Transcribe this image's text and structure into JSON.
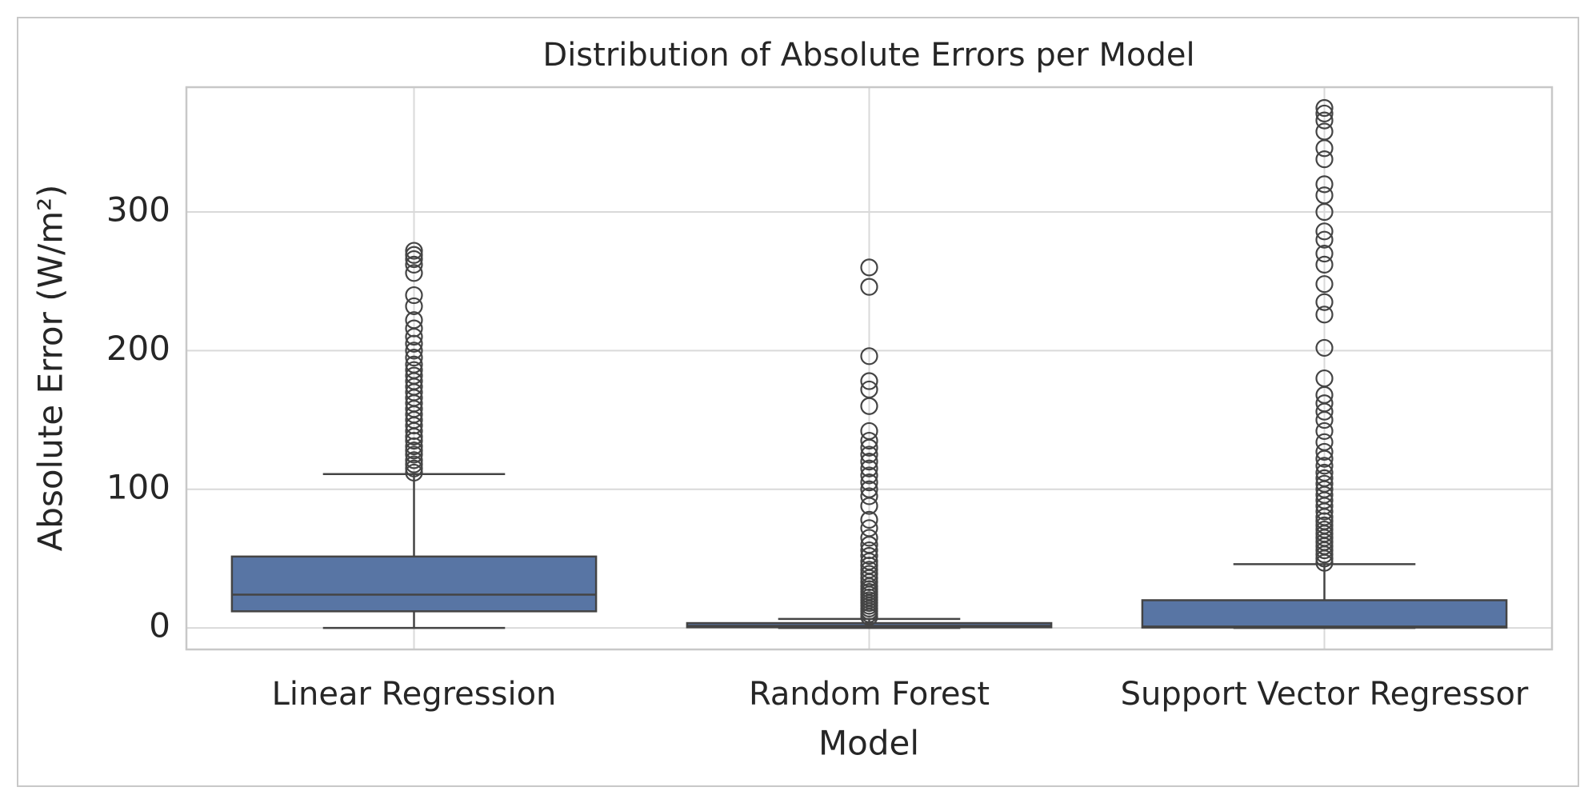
{
  "chart_data": {
    "type": "box",
    "title": "Distribution of Absolute Errors per Model",
    "xlabel": "Model",
    "ylabel": "Absolute Error (W/m²)",
    "categories": [
      "Linear Regression",
      "Random Forest",
      "Support Vector Regressor"
    ],
    "color": "#5875a4",
    "ylim": [
      -15.5,
      390
    ],
    "yticks": [
      0,
      100,
      200,
      300
    ],
    "grid": true,
    "boxes": [
      {
        "min": 0,
        "q1": 12,
        "median": 24,
        "q3": 51.5,
        "max": 111,
        "outliers": [
          112,
          115,
          118,
          121,
          125,
          128,
          131,
          135,
          138,
          142,
          146,
          150,
          154,
          158,
          162,
          166,
          170,
          174,
          178,
          182,
          186,
          190,
          195,
          200,
          205,
          210,
          216,
          222,
          232,
          240,
          256,
          262,
          266,
          269,
          272
        ]
      },
      {
        "min": 0,
        "q1": 0.5,
        "median": 1.5,
        "q3": 3.5,
        "max": 6.5,
        "outliers": [
          8,
          10,
          12,
          14,
          16,
          18,
          20,
          22,
          24,
          26,
          28,
          30,
          33,
          36,
          39,
          42,
          45,
          48,
          52,
          56,
          60,
          65,
          72,
          78,
          88,
          95,
          100,
          105,
          110,
          115,
          120,
          125,
          130,
          135,
          142,
          160,
          172,
          178,
          196,
          246,
          260
        ]
      },
      {
        "min": 0,
        "q1": 0.3,
        "median": 1,
        "q3": 20,
        "max": 46,
        "outliers": [
          47,
          50,
          53,
          56,
          59,
          62,
          65,
          68,
          71,
          74,
          77,
          80,
          84,
          88,
          92,
          96,
          100,
          104,
          108,
          112,
          117,
          122,
          127,
          134,
          142,
          150,
          156,
          162,
          168,
          180,
          202,
          226,
          235,
          248,
          262,
          270,
          280,
          286,
          300,
          312,
          320,
          338,
          346,
          358,
          366,
          371,
          375
        ]
      }
    ]
  }
}
